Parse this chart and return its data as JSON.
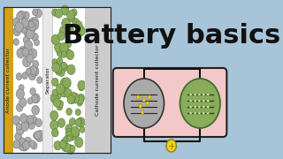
{
  "bg_color": "#a8c4d8",
  "title": "Battery basics",
  "title_color": "#111111",
  "title_fontsize": 22,
  "title_fontweight": "bold",
  "panel_border": "#222222",
  "anode_collector_color": "#d4a017",
  "anode_particle_color": "#aaaaaa",
  "cathode_particle_color": "#8aab5a",
  "separator_color": "#ffffff",
  "label_color": "#111111",
  "label_fontsize": 4.5,
  "battery_box_color": "#f2c8c8",
  "battery_box_border": "#222222",
  "anode_circle_color": "#aaaaaa",
  "cathode_circle_color": "#8aab5a",
  "wire_color": "#111111",
  "bulb_color": "#f5d020",
  "anode_label": "Anode current collector",
  "separator_label": "Separator",
  "cathode_label": "Cathode current collector"
}
